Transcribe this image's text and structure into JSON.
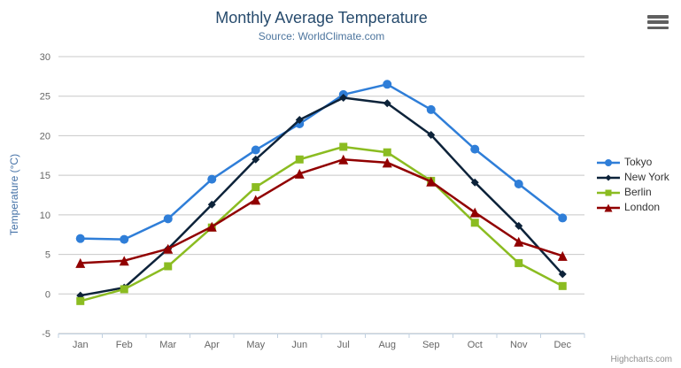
{
  "chart": {
    "credits_label": "Highcharts.com",
    "export_menu_icon": "hamburger-icon"
  },
  "colors": {
    "background": "#ffffff",
    "title": "#274b6d",
    "subtitle": "#4d759e",
    "axis_title": "#4572a7",
    "axis_labels": "#666666",
    "grid_line": "#c8c8c8",
    "axis_line": "#c0d0e0",
    "legend_text": "#333333",
    "credits": "#8f8f8f",
    "menu_icon": "#606060"
  },
  "chart_data": {
    "type": "line",
    "title": "Monthly Average Temperature",
    "subtitle": "Source: WorldClimate.com",
    "xlabel": "",
    "ylabel": "Temperature (°C)",
    "ylim": [
      -5,
      30
    ],
    "yticks": [
      -5,
      0,
      5,
      10,
      15,
      20,
      25,
      30
    ],
    "grid": true,
    "legend_position": "right",
    "categories": [
      "Jan",
      "Feb",
      "Mar",
      "Apr",
      "May",
      "Jun",
      "Jul",
      "Aug",
      "Sep",
      "Oct",
      "Nov",
      "Dec"
    ],
    "series": [
      {
        "name": "Tokyo",
        "color": "#2f7ed8",
        "marker": "circle",
        "values": [
          7.0,
          6.9,
          9.5,
          14.5,
          18.2,
          21.5,
          25.2,
          26.5,
          23.3,
          18.3,
          13.9,
          9.6
        ]
      },
      {
        "name": "New York",
        "color": "#0d233a",
        "marker": "diamond",
        "values": [
          -0.2,
          0.8,
          5.7,
          11.3,
          17.0,
          22.0,
          24.8,
          24.1,
          20.1,
          14.1,
          8.6,
          2.5
        ]
      },
      {
        "name": "Berlin",
        "color": "#8bbc21",
        "marker": "square",
        "values": [
          -0.9,
          0.6,
          3.5,
          8.4,
          13.5,
          17.0,
          18.6,
          17.9,
          14.3,
          9.0,
          3.9,
          1.0
        ]
      },
      {
        "name": "London",
        "color": "#910000",
        "marker": "triangle",
        "values": [
          3.9,
          4.2,
          5.7,
          8.5,
          11.9,
          15.2,
          17.0,
          16.6,
          14.2,
          10.3,
          6.6,
          4.8
        ]
      }
    ]
  }
}
